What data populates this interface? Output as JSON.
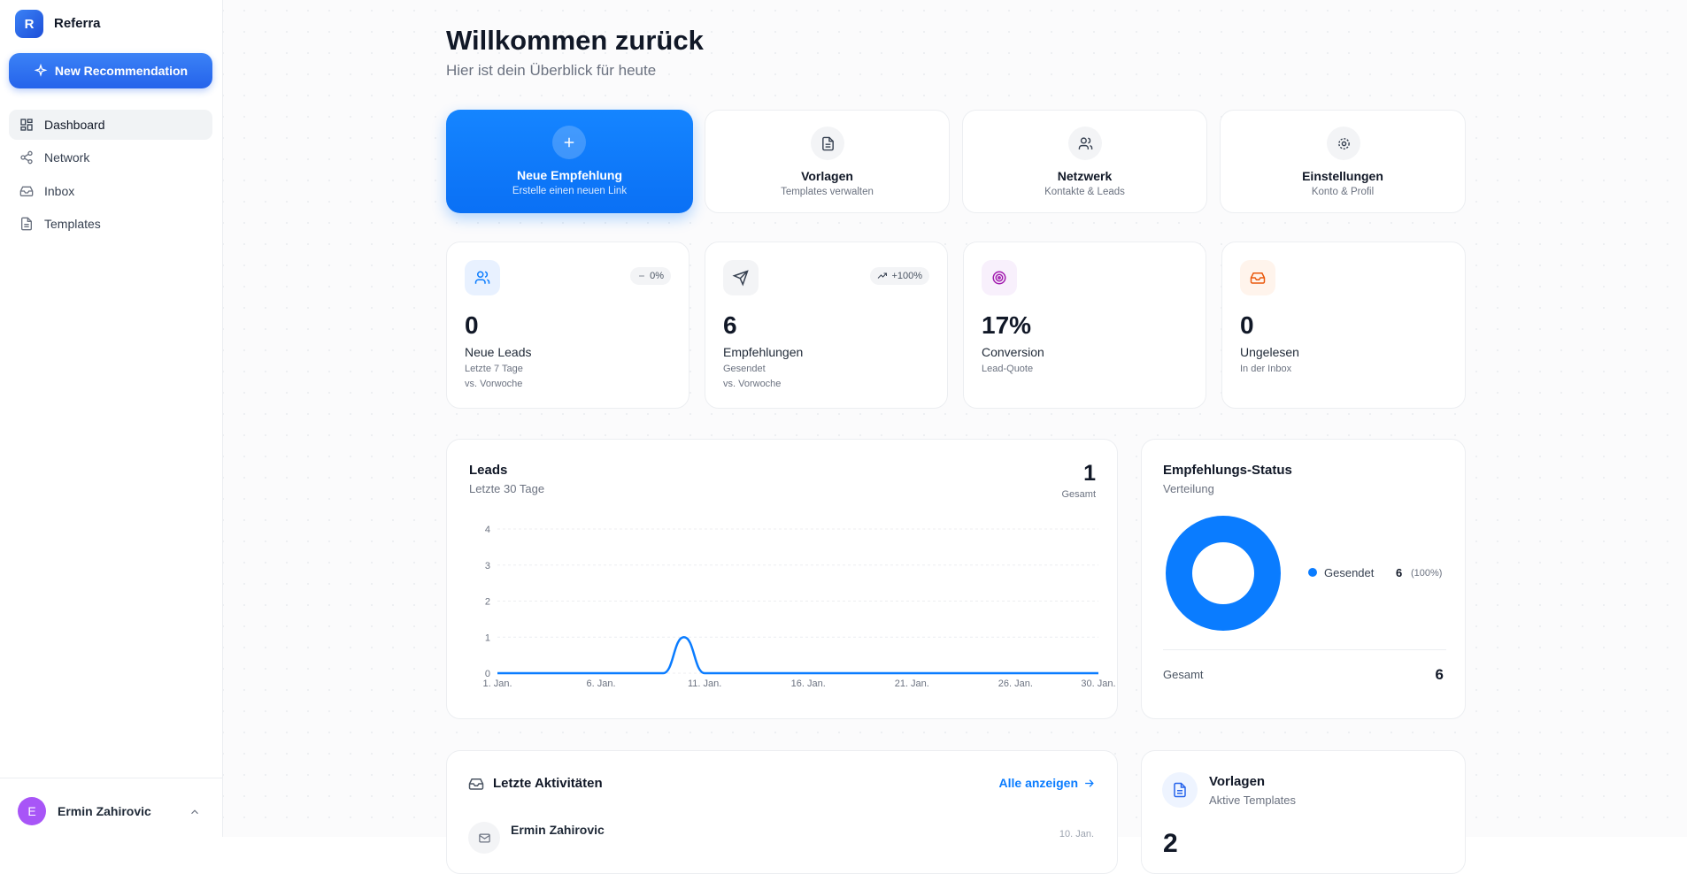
{
  "sidebar": {
    "brand_initial": "R",
    "brand": "Referra",
    "new_button": "New Recommendation",
    "nav": [
      "Dashboard",
      "Network",
      "Inbox",
      "Templates"
    ],
    "user_initial": "E",
    "user": "Ermin Zahirovic"
  },
  "header": {
    "title": "Willkommen zurück",
    "subtitle": "Hier ist dein Überblick für heute"
  },
  "quick_actions": [
    {
      "title": "Neue Empfehlung",
      "subtitle": "Erstelle einen neuen Link"
    },
    {
      "title": "Vorlagen",
      "subtitle": "Templates verwalten"
    },
    {
      "title": "Netzwerk",
      "subtitle": "Kontakte & Leads"
    },
    {
      "title": "Einstellungen",
      "subtitle": "Konto & Profil"
    }
  ],
  "stats": [
    {
      "value": "0",
      "label": "Neue Leads",
      "note": "Letzte 7 Tage",
      "compare": "vs. Vorwoche",
      "badge": "0%"
    },
    {
      "value": "6",
      "label": "Empfehlungen",
      "note": "Gesendet",
      "compare": "vs. Vorwoche",
      "badge": "+100%"
    },
    {
      "value": "17%",
      "label": "Conversion",
      "note": "Lead-Quote"
    },
    {
      "value": "0",
      "label": "Ungelesen",
      "note": "In der Inbox"
    }
  ],
  "chart_data": [
    {
      "type": "line",
      "title": "Leads",
      "subtitle": "Letzte 30 Tage",
      "total": 1,
      "total_label": "Gesamt",
      "categories": [
        "1. Jan.",
        null,
        null,
        null,
        null,
        "6. Jan.",
        null,
        null,
        null,
        null,
        "11. Jan.",
        null,
        null,
        null,
        null,
        "16. Jan.",
        null,
        null,
        null,
        null,
        "21. Jan.",
        null,
        null,
        null,
        null,
        "26. Jan.",
        null,
        null,
        null,
        "30. Jan."
      ],
      "values": [
        0,
        0,
        0,
        0,
        0,
        0,
        0,
        0,
        0,
        1,
        0,
        0,
        0,
        0,
        0,
        0,
        0,
        0,
        0,
        0,
        0,
        0,
        0,
        0,
        0,
        0,
        0,
        0,
        0,
        0
      ],
      "color": "#0a7cff",
      "ylim": [
        0,
        4
      ],
      "yticks": [
        0,
        1,
        2,
        3,
        4
      ],
      "grid": true
    },
    {
      "type": "pie",
      "donut": true,
      "title": "Empfehlungs-Status",
      "subtitle": "Verteilung",
      "labels": [
        "Gesendet"
      ],
      "values": [
        6
      ],
      "share_labels": [
        "(100%)"
      ],
      "colors": [
        "#0a7cff"
      ],
      "total_label": "Gesamt",
      "total": 6
    }
  ],
  "activities": {
    "title": "Letzte Aktivitäten",
    "link": "Alle anzeigen",
    "items": [
      {
        "name": "Ermin Zahirovic",
        "date": "10. Jan."
      }
    ]
  },
  "templates": {
    "title": "Vorlagen",
    "subtitle": "Aktive Templates",
    "count": 2
  }
}
